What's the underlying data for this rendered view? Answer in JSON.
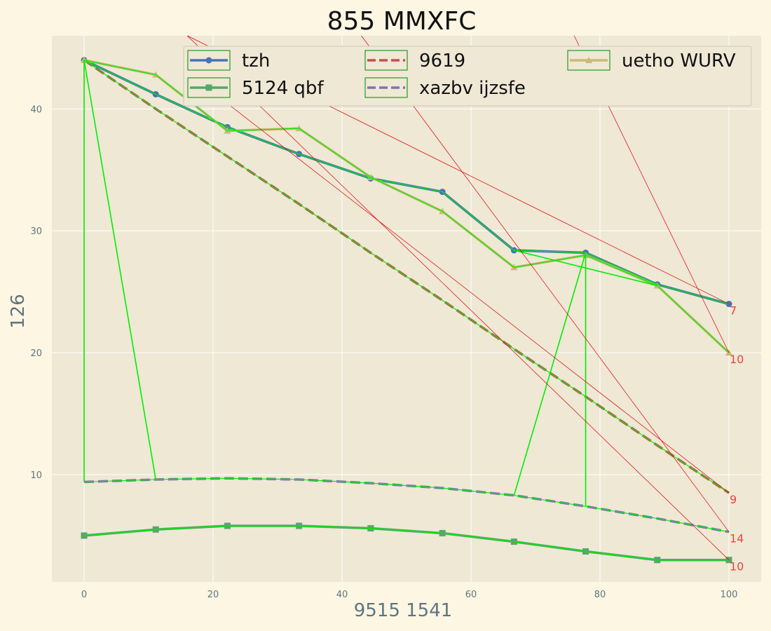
{
  "chart_data": {
    "type": "line",
    "title": "855 MMXFC",
    "xlabel": "9515 1541",
    "ylabel": "126",
    "xlim": [
      -5,
      105
    ],
    "ylim": [
      1.2,
      46
    ],
    "xticks": [
      0,
      20,
      40,
      60,
      80,
      100
    ],
    "yticks": [
      10,
      20,
      30,
      40
    ],
    "grid": true,
    "legend_position": "top",
    "x": [
      0,
      11.11,
      22.22,
      33.33,
      44.44,
      55.56,
      66.67,
      77.78,
      88.89,
      100
    ],
    "series": [
      {
        "name": "tzh",
        "color": "#4c72b0",
        "marker": "circle",
        "dash": false,
        "values": [
          44.0,
          41.2,
          38.5,
          36.3,
          34.3,
          33.2,
          28.4,
          28.2,
          25.6,
          24.0
        ]
      },
      {
        "name": "5124 qbf",
        "color": "#55a868",
        "marker": "square",
        "dash": false,
        "values": [
          5.0,
          5.5,
          5.8,
          5.8,
          5.6,
          5.2,
          4.5,
          3.7,
          3.0,
          3.0
        ]
      },
      {
        "name": "9619",
        "color": "#c44e52",
        "marker": "none",
        "dash": true,
        "values": [
          44.0,
          40.0,
          36.1,
          32.2,
          28.2,
          24.3,
          20.3,
          16.4,
          12.4,
          8.5
        ]
      },
      {
        "name": "xazbv ijzsfe",
        "color": "#8172b2",
        "marker": "none",
        "dash": true,
        "values": [
          9.4,
          9.6,
          9.7,
          9.6,
          9.3,
          8.9,
          8.3,
          7.4,
          6.4,
          5.3
        ]
      },
      {
        "name": "uetho WURV",
        "color": "#ccb974",
        "marker": "triangle",
        "dash": false,
        "values": [
          44.0,
          42.8,
          38.2,
          38.4,
          34.4,
          31.6,
          27.0,
          28.0,
          25.5,
          20.0
        ]
      }
    ],
    "end_labels": [
      {
        "text": "7",
        "x": 100,
        "y": 24.0
      },
      {
        "text": "10",
        "x": 100,
        "y": 20.0
      },
      {
        "text": "9",
        "x": 100,
        "y": 8.5
      },
      {
        "text": "14",
        "x": 100,
        "y": 5.3
      },
      {
        "text": "10",
        "x": 100,
        "y": 3.0
      }
    ],
    "overlay_color": "#00ee00",
    "overlay_segments": [
      [
        [
          0,
          44.0
        ],
        [
          0,
          9.4
        ]
      ],
      [
        [
          0,
          44.0
        ],
        [
          11.11,
          9.6
        ]
      ],
      [
        [
          66.67,
          8.3
        ],
        [
          77.78,
          28.2
        ]
      ],
      [
        [
          77.78,
          28.2
        ],
        [
          77.78,
          7.4
        ]
      ],
      [
        [
          66.67,
          28.4
        ],
        [
          88.89,
          25.5
        ]
      ]
    ],
    "red_line_color": "#dd0000",
    "red_lines": [
      [
        [
          16,
          46
        ],
        [
          100,
          24.0
        ]
      ],
      [
        [
          76,
          46
        ],
        [
          100,
          20.0
        ]
      ],
      [
        [
          16,
          43
        ],
        [
          100,
          8.5
        ]
      ],
      [
        [
          43,
          46
        ],
        [
          100,
          5.3
        ]
      ],
      [
        [
          16,
          46
        ],
        [
          100,
          3.0
        ]
      ]
    ]
  }
}
